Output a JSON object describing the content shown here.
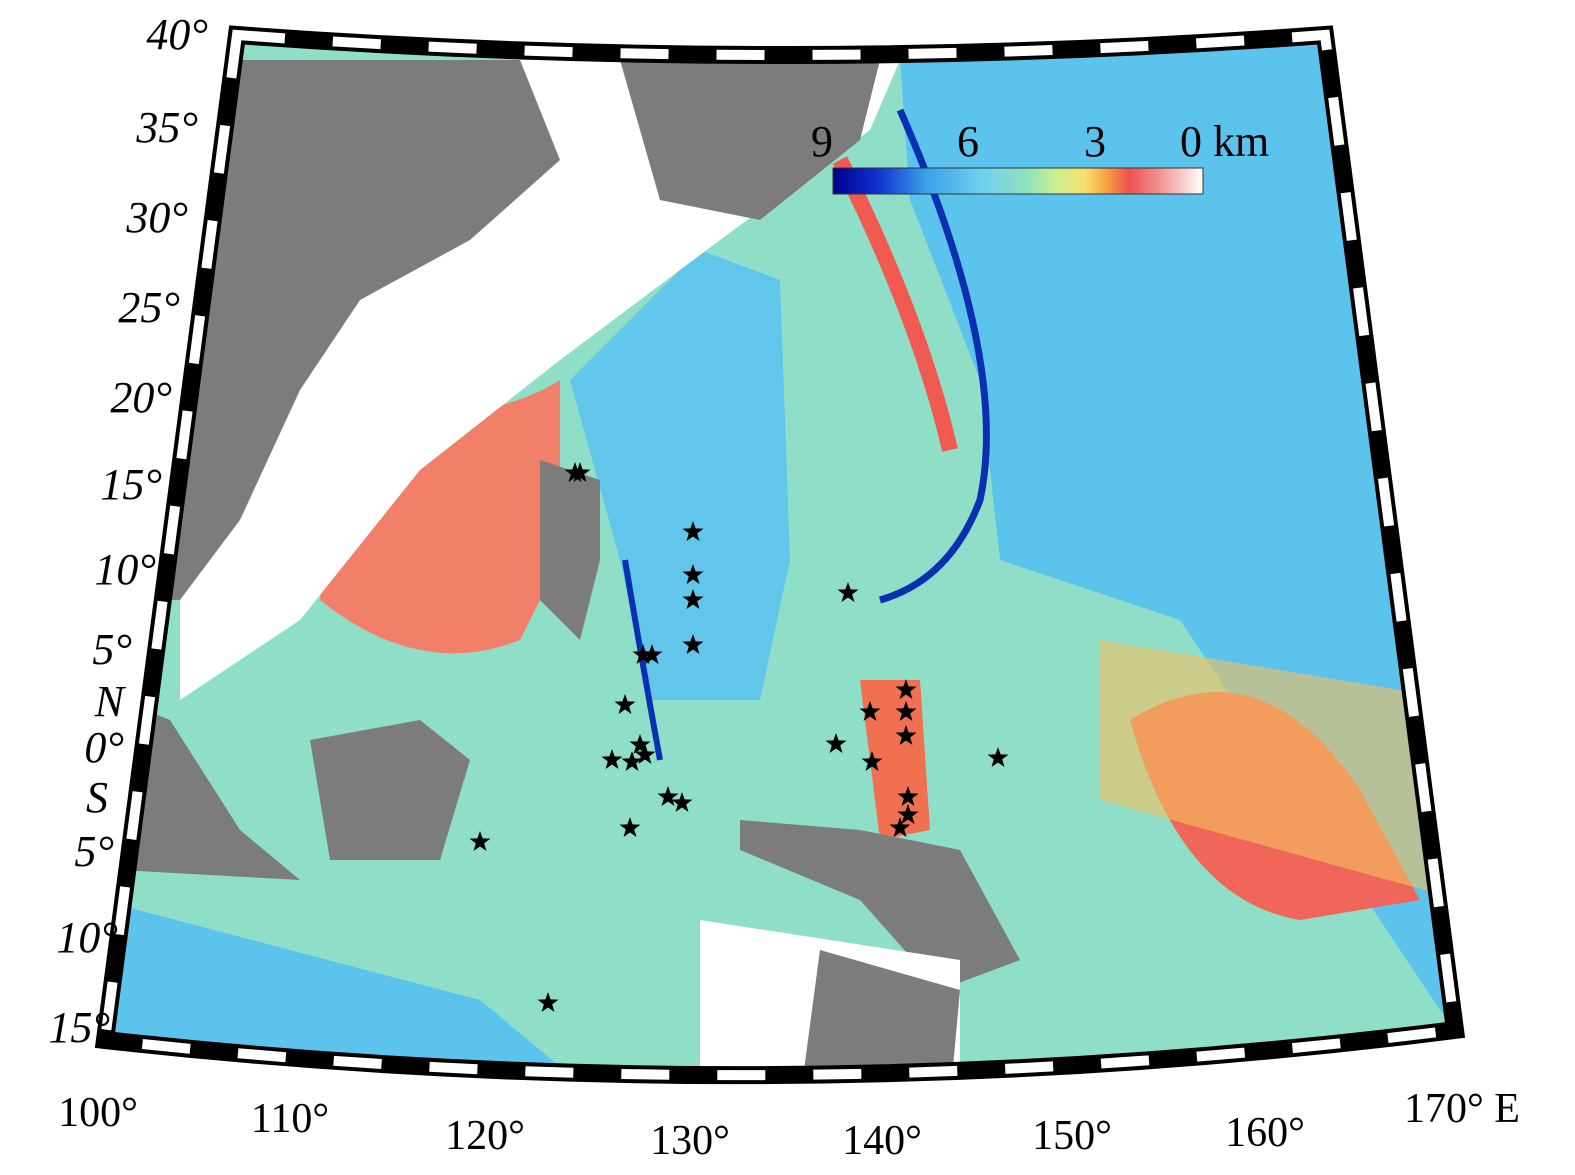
{
  "map": {
    "latitude_labels": [
      "40°",
      "35°",
      "30°",
      "25°",
      "20°",
      "15°",
      "10°",
      "5°",
      "N",
      "0°",
      "S",
      "5°",
      "10°",
      "15°"
    ],
    "longitude_labels": [
      "100°",
      "110°",
      "120°",
      "130°",
      "140°",
      "150°",
      "160°",
      "170° E"
    ],
    "colorbar": {
      "labels": [
        "9",
        "6",
        "3",
        "0 km"
      ]
    }
  }
}
